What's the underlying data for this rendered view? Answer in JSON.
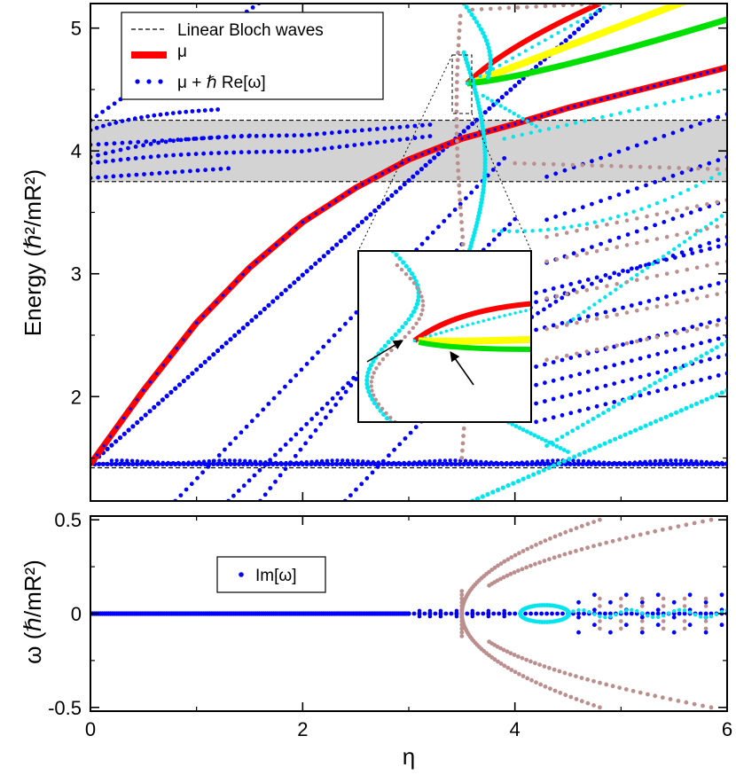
{
  "chart_data": [
    {
      "type": "scatter",
      "xlabel": "",
      "ylabel": "Energy  (ℏ²/mR²)",
      "xlim": [
        0,
        6
      ],
      "ylim": [
        1.15,
        5.2
      ],
      "xticks": [
        0,
        2,
        4,
        6
      ],
      "yticks": [
        2,
        3,
        4,
        5
      ],
      "tick_labels_y": [
        "2",
        "3",
        "4",
        "5"
      ],
      "legend": {
        "placement": "top-left",
        "entries": [
          "Linear Bloch waves",
          "μ",
          "μ + ℏ Re[ω]"
        ]
      },
      "band_gap": [
        3.75,
        4.25
      ],
      "bloch_levels": [
        1.42,
        1.46,
        3.75,
        4.25
      ],
      "colors": {
        "bloch": "#000000",
        "mu": "#ff0000",
        "re_omega": "#0000ff",
        "cyan": "#00e5ee",
        "brown": "#bc8f8f",
        "yellow": "#ffff00",
        "green": "#00e000",
        "gap": "#d3d3d3"
      },
      "series": [
        {
          "name": "μ",
          "x": [
            0,
            0.5,
            1,
            1.5,
            2,
            2.5,
            3,
            3.5,
            4,
            4.5,
            5,
            5.5,
            6
          ],
          "y": [
            1.45,
            2.05,
            2.6,
            3.05,
            3.42,
            3.7,
            3.93,
            4.1,
            4.22,
            4.35,
            4.46,
            4.57,
            4.68
          ]
        },
        {
          "name": "μ + ℏ Re[ω]",
          "x": [
            0,
            0.5,
            1,
            1.5,
            2,
            2.5,
            3,
            3.5,
            4,
            4.5,
            5,
            5.5,
            6
          ],
          "y": [
            1.45,
            1.45,
            1.45,
            1.45,
            1.45,
            1.45,
            1.45,
            1.45,
            1.45,
            1.45,
            1.45,
            1.45,
            1.45
          ]
        }
      ],
      "inset": {
        "zoom_x": [
          3.45,
          3.6
        ],
        "zoom_y": [
          4.48,
          4.8
        ],
        "has_arrows": true
      }
    },
    {
      "type": "scatter",
      "xlabel": "η",
      "ylabel": "ω  (ℏ/mR²)",
      "xlim": [
        0,
        6
      ],
      "ylim": [
        -0.52,
        0.52
      ],
      "xticks": [
        0,
        2,
        4,
        6
      ],
      "tick_labels_x": [
        "0",
        "2",
        "4",
        "6"
      ],
      "yticks": [
        -0.5,
        0,
        0.5
      ],
      "tick_labels_y": [
        "-0.5",
        "0",
        "0.5"
      ],
      "legend": {
        "placement": "top-left",
        "entries": [
          "Im[ω]"
        ]
      },
      "series": [
        {
          "name": "Im[ω]",
          "x": [
            0,
            1,
            2,
            3,
            3.5,
            4,
            4.5,
            5,
            5.5,
            6
          ],
          "y": [
            0,
            0,
            0,
            0,
            0,
            0,
            0,
            0,
            0,
            0
          ]
        }
      ]
    }
  ]
}
